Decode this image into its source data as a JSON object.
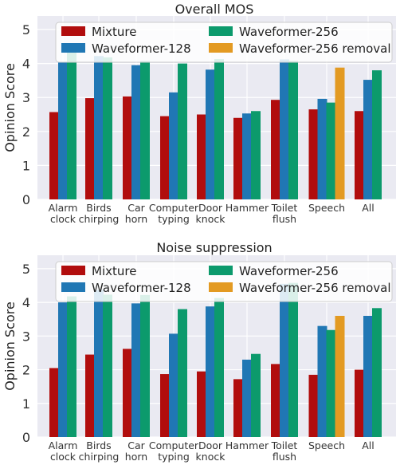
{
  "colors": {
    "mixture": "#b10d0d",
    "waveformer_128": "#2077b4",
    "waveformer_256": "#0c9a6c",
    "waveformer_256_removal": "#e39a22",
    "plot_background": "#eaeaf2",
    "grid": "#ffffff"
  },
  "chart_data": [
    {
      "type": "bar",
      "title": "Overall MOS",
      "xlabel": "",
      "ylabel": "Opinion Score",
      "ylim": [
        0,
        5.4
      ],
      "yticks": [
        0,
        1,
        2,
        3,
        4,
        5
      ],
      "grid": true,
      "legend_position": "top",
      "categories": [
        "Alarm\nclock",
        "Birds\nchirping",
        "Car\nhorn",
        "Computer\ntyping",
        "Door\nknock",
        "Hammer",
        "Toilet\nflush",
        "Speech",
        "All"
      ],
      "series": [
        {
          "name": "Mixture",
          "color": "#b10d0d",
          "values": [
            2.57,
            2.98,
            3.03,
            2.45,
            2.5,
            2.4,
            2.93,
            2.65,
            2.6
          ]
        },
        {
          "name": "Waveformer-128",
          "color": "#2077b4",
          "values": [
            4.03,
            4.22,
            3.95,
            3.15,
            3.82,
            2.53,
            4.12,
            2.96,
            3.52
          ]
        },
        {
          "name": "Waveformer-256",
          "color": "#0c9a6c",
          "values": [
            4.32,
            4.18,
            4.08,
            4.0,
            4.13,
            2.6,
            4.08,
            2.85,
            3.8
          ]
        },
        {
          "name": "Waveformer-256 removal",
          "color": "#e39a22",
          "values": [
            null,
            null,
            null,
            null,
            null,
            null,
            null,
            3.88,
            null
          ]
        }
      ]
    },
    {
      "type": "bar",
      "title": "Noise suppression",
      "xlabel": "",
      "ylabel": "Opinion Score",
      "ylim": [
        0,
        5.4
      ],
      "yticks": [
        0,
        1,
        2,
        3,
        4,
        5
      ],
      "grid": true,
      "legend_position": "top",
      "categories": [
        "Alarm\nclock",
        "Birds\nchirping",
        "Car\nhorn",
        "Computer\ntyping",
        "Door\nknock",
        "Hammer",
        "Toilet\nflush",
        "Speech",
        "All"
      ],
      "series": [
        {
          "name": "Mixture",
          "color": "#b10d0d",
          "values": [
            2.05,
            2.45,
            2.62,
            1.87,
            1.95,
            1.72,
            2.17,
            1.85,
            2.0
          ]
        },
        {
          "name": "Waveformer-128",
          "color": "#2077b4",
          "values": [
            4.0,
            4.37,
            3.97,
            3.07,
            3.88,
            2.3,
            4.55,
            3.3,
            3.6
          ]
        },
        {
          "name": "Waveformer-256",
          "color": "#0c9a6c",
          "values": [
            4.18,
            4.23,
            4.22,
            3.8,
            4.13,
            2.47,
            4.58,
            3.18,
            3.83
          ]
        },
        {
          "name": "Waveformer-256 removal",
          "color": "#e39a22",
          "values": [
            null,
            null,
            null,
            null,
            null,
            null,
            null,
            3.6,
            null
          ]
        }
      ]
    }
  ]
}
